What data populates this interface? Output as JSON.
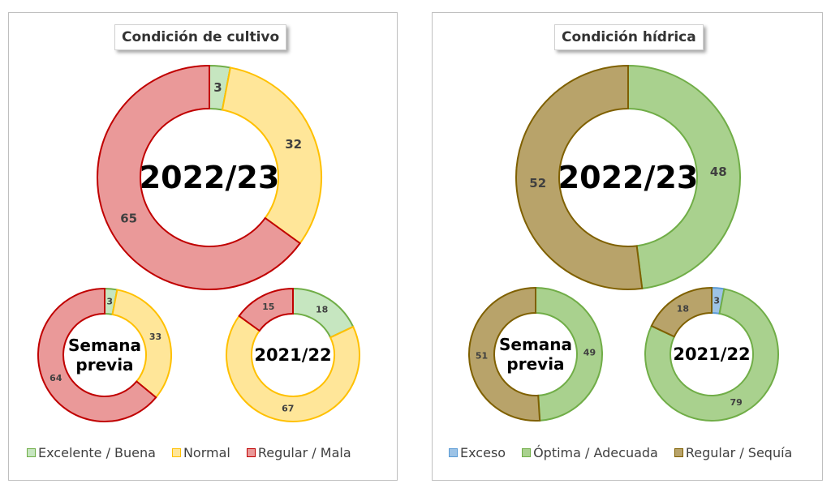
{
  "panels": {
    "left": {
      "title": "Condición de cultivo"
    },
    "right": {
      "title": "Condición hídrica"
    }
  },
  "colors": {
    "excelente_buena": {
      "fill": "#c6e6c0",
      "stroke": "#70ad47"
    },
    "normal": {
      "fill": "#ffe699",
      "stroke": "#ffc000"
    },
    "regular_mala": {
      "fill": "#ea9999",
      "stroke": "#c00000"
    },
    "exceso": {
      "fill": "#9dc3e6",
      "stroke": "#5b9bd5"
    },
    "optima_adecuada": {
      "fill": "#a9d18e",
      "stroke": "#70ad47"
    },
    "regular_sequia": {
      "fill": "#b8a36a",
      "stroke": "#7f6000"
    }
  },
  "chart_data": [
    {
      "type": "pie",
      "title": "Condición de cultivo",
      "legend": [
        "Excelente / Buena",
        "Normal",
        "Regular / Mala"
      ],
      "legend_placement": "bottom",
      "donuts": [
        {
          "center_label": "2022/23",
          "values": [
            3,
            32,
            65
          ],
          "labels": [
            "3",
            "32",
            "65"
          ]
        },
        {
          "center_label": "Semana previa",
          "center_lines": [
            "Semana",
            "previa"
          ],
          "values": [
            3,
            33,
            64
          ],
          "labels": [
            "3",
            "33",
            "64"
          ]
        },
        {
          "center_label": "2021/22",
          "values": [
            18,
            67,
            15
          ],
          "labels": [
            "18",
            "67",
            "15"
          ]
        }
      ]
    },
    {
      "type": "pie",
      "title": "Condición hídrica",
      "legend": [
        "Exceso",
        "Óptima / Adecuada",
        "Regular / Sequía"
      ],
      "legend_placement": "bottom",
      "donuts": [
        {
          "center_label": "2022/23",
          "values": [
            0,
            48,
            52
          ],
          "labels": [
            "-",
            "48",
            "52"
          ]
        },
        {
          "center_label": "Semana previa",
          "center_lines": [
            "Semana",
            "previa"
          ],
          "values": [
            0,
            49,
            51
          ],
          "labels": [
            "-",
            "49",
            "51"
          ]
        },
        {
          "center_label": "2021/22",
          "values": [
            3,
            79,
            18
          ],
          "labels": [
            "3",
            "79",
            "18"
          ]
        }
      ]
    }
  ]
}
